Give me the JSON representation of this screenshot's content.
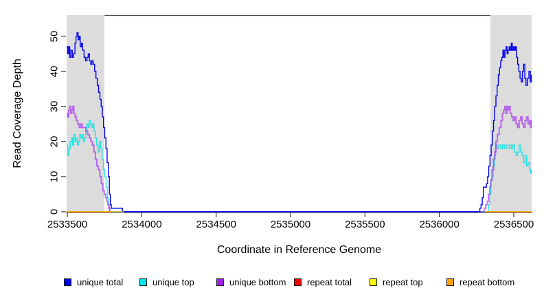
{
  "colors": {
    "background": "#ffffff",
    "shade": "#dcdcdc",
    "axis": "#333333",
    "text": "#000000"
  },
  "chart_data": {
    "type": "line",
    "title": "",
    "xlabel": "Coordinate in Reference Genome",
    "ylabel": "Read Coverage Depth",
    "xlim": [
      2533495,
      2536620
    ],
    "ylim": [
      0,
      56
    ],
    "x_ticks": [
      2533500,
      2534000,
      2534500,
      2535000,
      2535500,
      2536000,
      2536500
    ],
    "y_ticks": [
      0,
      10,
      20,
      30,
      40,
      50
    ],
    "grid": false,
    "legend_position": "bottom",
    "line_style": "step-after",
    "shaded_regions": [
      {
        "from": 2533495,
        "to": 2533750,
        "color": "#dcdcdc"
      },
      {
        "from": 2536342,
        "to": 2536620,
        "color": "#dcdcdc"
      }
    ],
    "series": [
      {
        "name": "unique total",
        "color": "#0000EE",
        "points": [
          [
            2533495,
            47
          ],
          [
            2533502,
            45
          ],
          [
            2533509,
            47
          ],
          [
            2533516,
            44
          ],
          [
            2533524,
            46
          ],
          [
            2533533,
            44
          ],
          [
            2533542,
            45
          ],
          [
            2533551,
            48
          ],
          [
            2533558,
            50
          ],
          [
            2533565,
            51
          ],
          [
            2533572,
            49
          ],
          [
            2533579,
            50
          ],
          [
            2533586,
            47
          ],
          [
            2533594,
            48
          ],
          [
            2533602,
            46
          ],
          [
            2533612,
            44
          ],
          [
            2533622,
            43
          ],
          [
            2533632,
            44
          ],
          [
            2533640,
            45
          ],
          [
            2533648,
            43
          ],
          [
            2533657,
            42
          ],
          [
            2533665,
            43
          ],
          [
            2533674,
            42
          ],
          [
            2533683,
            40
          ],
          [
            2533692,
            38
          ],
          [
            2533701,
            36
          ],
          [
            2533710,
            34
          ],
          [
            2533719,
            32
          ],
          [
            2533727,
            30
          ],
          [
            2533735,
            27
          ],
          [
            2533743,
            24
          ],
          [
            2533751,
            21
          ],
          [
            2533759,
            18
          ],
          [
            2533767,
            14
          ],
          [
            2533775,
            10
          ],
          [
            2533782,
            5
          ],
          [
            2533789,
            2
          ],
          [
            2533795,
            1
          ],
          [
            2533870,
            0
          ],
          [
            2536272,
            1
          ],
          [
            2536280,
            2
          ],
          [
            2536288,
            4
          ],
          [
            2536296,
            7
          ],
          [
            2536316,
            8
          ],
          [
            2536324,
            10
          ],
          [
            2536332,
            13
          ],
          [
            2536340,
            16
          ],
          [
            2536348,
            19
          ],
          [
            2536356,
            23
          ],
          [
            2536364,
            26
          ],
          [
            2536372,
            30
          ],
          [
            2536380,
            33
          ],
          [
            2536388,
            36
          ],
          [
            2536396,
            39
          ],
          [
            2536404,
            41
          ],
          [
            2536412,
            43
          ],
          [
            2536420,
            44
          ],
          [
            2536427,
            46
          ],
          [
            2536434,
            44
          ],
          [
            2536441,
            46
          ],
          [
            2536448,
            47
          ],
          [
            2536455,
            45
          ],
          [
            2536462,
            46
          ],
          [
            2536469,
            47
          ],
          [
            2536476,
            46
          ],
          [
            2536483,
            48
          ],
          [
            2536490,
            46
          ],
          [
            2536497,
            47
          ],
          [
            2536504,
            46
          ],
          [
            2536511,
            47
          ],
          [
            2536518,
            44
          ],
          [
            2536526,
            42
          ],
          [
            2536534,
            40
          ],
          [
            2536542,
            38
          ],
          [
            2536550,
            37
          ],
          [
            2536558,
            40
          ],
          [
            2536566,
            42
          ],
          [
            2536574,
            38
          ],
          [
            2536582,
            36
          ],
          [
            2536592,
            38
          ],
          [
            2536602,
            40
          ],
          [
            2536611,
            37
          ],
          [
            2536618,
            39
          ]
        ]
      },
      {
        "name": "unique top",
        "color": "#00E5E5",
        "points": [
          [
            2533495,
            19
          ],
          [
            2533503,
            16
          ],
          [
            2533511,
            18
          ],
          [
            2533519,
            20
          ],
          [
            2533527,
            21
          ],
          [
            2533535,
            19
          ],
          [
            2533543,
            22
          ],
          [
            2533551,
            20
          ],
          [
            2533559,
            21
          ],
          [
            2533567,
            19
          ],
          [
            2533575,
            20
          ],
          [
            2533583,
            22
          ],
          [
            2533591,
            21
          ],
          [
            2533599,
            22
          ],
          [
            2533607,
            20
          ],
          [
            2533615,
            21
          ],
          [
            2533623,
            23
          ],
          [
            2533631,
            25
          ],
          [
            2533639,
            24
          ],
          [
            2533647,
            26
          ],
          [
            2533655,
            25
          ],
          [
            2533663,
            24
          ],
          [
            2533671,
            25
          ],
          [
            2533679,
            23
          ],
          [
            2533688,
            21
          ],
          [
            2533697,
            19
          ],
          [
            2533706,
            17
          ],
          [
            2533715,
            20
          ],
          [
            2533724,
            18
          ],
          [
            2533733,
            15
          ],
          [
            2533742,
            12
          ],
          [
            2533751,
            10
          ],
          [
            2533760,
            7
          ],
          [
            2533768,
            4
          ],
          [
            2533776,
            2
          ],
          [
            2533783,
            0
          ],
          [
            2536330,
            2
          ],
          [
            2536338,
            5
          ],
          [
            2536346,
            9
          ],
          [
            2536354,
            10
          ],
          [
            2536362,
            13
          ],
          [
            2536370,
            16
          ],
          [
            2536378,
            19
          ],
          [
            2536390,
            18
          ],
          [
            2536400,
            19
          ],
          [
            2536412,
            18
          ],
          [
            2536424,
            19
          ],
          [
            2536436,
            18
          ],
          [
            2536448,
            19
          ],
          [
            2536460,
            18
          ],
          [
            2536472,
            19
          ],
          [
            2536484,
            18
          ],
          [
            2536494,
            19
          ],
          [
            2536506,
            17
          ],
          [
            2536516,
            16
          ],
          [
            2536526,
            17
          ],
          [
            2536536,
            19
          ],
          [
            2536546,
            17
          ],
          [
            2536556,
            16
          ],
          [
            2536566,
            14
          ],
          [
            2536576,
            16
          ],
          [
            2536586,
            13
          ],
          [
            2536596,
            14
          ],
          [
            2536606,
            12
          ],
          [
            2536613,
            11
          ],
          [
            2536618,
            12
          ]
        ]
      },
      {
        "name": "unique bottom",
        "color": "#A020F0",
        "points": [
          [
            2533495,
            28
          ],
          [
            2533502,
            27
          ],
          [
            2533509,
            29
          ],
          [
            2533516,
            30
          ],
          [
            2533523,
            28
          ],
          [
            2533530,
            29
          ],
          [
            2533537,
            30
          ],
          [
            2533544,
            28
          ],
          [
            2533552,
            27
          ],
          [
            2533560,
            26
          ],
          [
            2533570,
            25
          ],
          [
            2533580,
            24
          ],
          [
            2533590,
            25
          ],
          [
            2533600,
            24
          ],
          [
            2533612,
            24
          ],
          [
            2533624,
            23
          ],
          [
            2533636,
            22
          ],
          [
            2533648,
            21
          ],
          [
            2533658,
            20
          ],
          [
            2533668,
            19
          ],
          [
            2533678,
            17
          ],
          [
            2533688,
            15
          ],
          [
            2533698,
            13
          ],
          [
            2533708,
            12
          ],
          [
            2533718,
            10
          ],
          [
            2533728,
            8
          ],
          [
            2533738,
            6
          ],
          [
            2533748,
            5
          ],
          [
            2533757,
            4
          ],
          [
            2533765,
            3
          ],
          [
            2533772,
            2
          ],
          [
            2533778,
            1
          ],
          [
            2533785,
            0
          ],
          [
            2536302,
            1
          ],
          [
            2536312,
            2
          ],
          [
            2536322,
            3
          ],
          [
            2536330,
            5
          ],
          [
            2536338,
            7
          ],
          [
            2536346,
            9
          ],
          [
            2536354,
            12
          ],
          [
            2536364,
            15
          ],
          [
            2536372,
            17
          ],
          [
            2536380,
            20
          ],
          [
            2536390,
            22
          ],
          [
            2536402,
            24
          ],
          [
            2536414,
            26
          ],
          [
            2536424,
            28
          ],
          [
            2536432,
            29
          ],
          [
            2536440,
            30
          ],
          [
            2536447,
            28
          ],
          [
            2536454,
            30
          ],
          [
            2536461,
            29
          ],
          [
            2536468,
            30
          ],
          [
            2536476,
            28
          ],
          [
            2536486,
            27
          ],
          [
            2536496,
            26
          ],
          [
            2536506,
            27
          ],
          [
            2536516,
            25
          ],
          [
            2536526,
            24
          ],
          [
            2536536,
            26
          ],
          [
            2536546,
            27
          ],
          [
            2536556,
            25
          ],
          [
            2536566,
            24
          ],
          [
            2536576,
            26
          ],
          [
            2536586,
            27
          ],
          [
            2536596,
            25
          ],
          [
            2536606,
            26
          ],
          [
            2536613,
            24
          ],
          [
            2536618,
            26
          ]
        ]
      },
      {
        "name": "repeat total",
        "color": "#EE0000",
        "points": [
          [
            2533495,
            0
          ],
          [
            2533792,
            null
          ],
          [
            2536310,
            0
          ],
          [
            2536618,
            0
          ]
        ]
      },
      {
        "name": "repeat top",
        "color": "#FFFF00",
        "points": [
          [
            2533495,
            0
          ],
          [
            2533878,
            null
          ],
          [
            2536310,
            0
          ],
          [
            2536618,
            0
          ]
        ]
      },
      {
        "name": "repeat bottom",
        "color": "#FFA500",
        "points": [
          [
            2533495,
            0
          ],
          [
            2533792,
            null
          ],
          [
            2536308,
            0
          ],
          [
            2536618,
            0
          ]
        ]
      }
    ]
  }
}
